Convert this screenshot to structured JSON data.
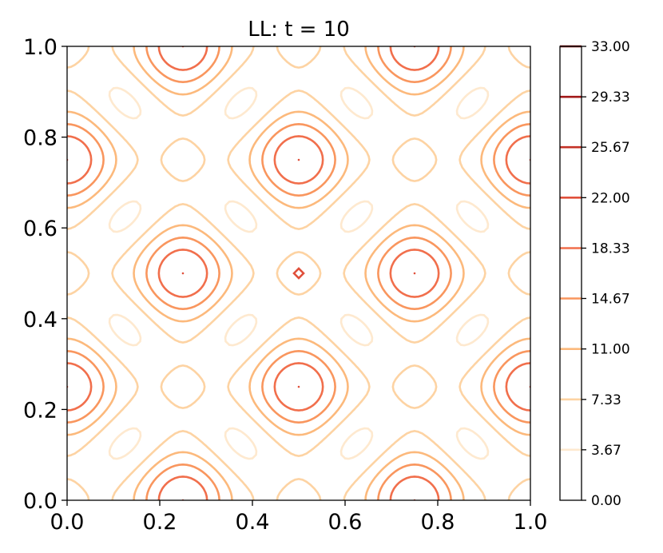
{
  "chart_data": {
    "type": "contour",
    "title": "LL: t = 10",
    "xlabel": "",
    "ylabel": "",
    "xlim": [
      0.0,
      1.0
    ],
    "ylim": [
      0.0,
      1.0
    ],
    "x_ticks": [
      "0.0",
      "0.2",
      "0.4",
      "0.6",
      "0.8",
      "1.0"
    ],
    "y_ticks": [
      "0.0",
      "0.2",
      "0.4",
      "0.6",
      "0.8",
      "1.0"
    ],
    "colorbar": {
      "ticks": [
        "0.00",
        "3.67",
        "7.33",
        "11.00",
        "14.67",
        "18.33",
        "22.00",
        "25.67",
        "29.33",
        "33.00"
      ],
      "levels": [
        3.67,
        7.33,
        11.0,
        14.67,
        18.33,
        22.0,
        25.67,
        29.33,
        33.0
      ],
      "colors": [
        "#fee9cf",
        "#fdd3a3",
        "#fcb97c",
        "#f9965e",
        "#f16f4c",
        "#e0503b",
        "#c43227",
        "#a2191a",
        "#7f0000"
      ],
      "colormap": "OrRd"
    },
    "grid": false,
    "peak_locations": [
      [
        0.5,
        0.5
      ]
    ],
    "peak_level": 22.0
  }
}
